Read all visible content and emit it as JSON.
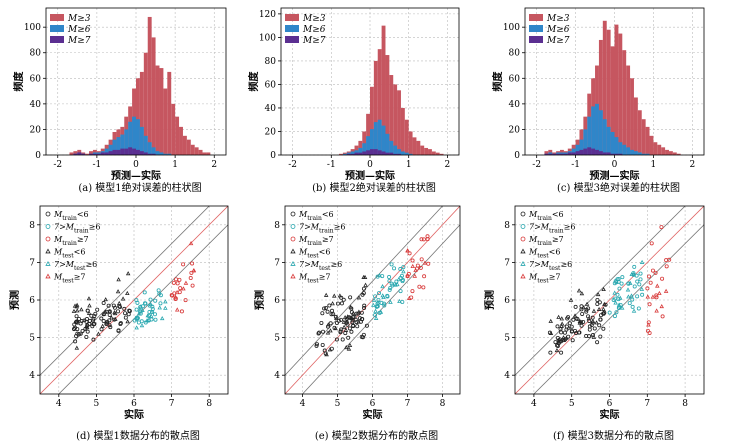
{
  "colors": {
    "m3": "#c65660",
    "m6": "#2f86c9",
    "m7": "#5b2f91",
    "train_lt6": "#222222",
    "train_6to7": "#2aa8b0",
    "train_ge7": "#d83a3a",
    "ref_line": "#e06666",
    "band_line": "#777777",
    "grid": "#bbbbbb"
  },
  "chart_data": [
    {
      "type": "bar",
      "panel": "a",
      "caption": "(a) 模型1绝对误差的柱状图",
      "xlabel": "预测—实际",
      "ylabel": "频度",
      "xlim": [
        -2.3,
        2.3
      ],
      "ylim": [
        0,
        115
      ],
      "xticks": [
        "-2",
        "-1",
        "0",
        "1",
        "2"
      ],
      "yticks": [
        "0",
        "20",
        "40",
        "60",
        "80",
        "100"
      ],
      "legend": [
        "M≥3",
        "M≥6",
        "M≥7"
      ],
      "bin_start": -1.7,
      "bin_width": 0.1,
      "series": [
        {
          "name": "M≥3",
          "values": [
            2,
            3,
            4,
            2,
            1,
            3,
            4,
            3,
            5,
            8,
            12,
            18,
            20,
            22,
            30,
            38,
            52,
            60,
            65,
            80,
            108,
            92,
            70,
            68,
            52,
            65,
            40,
            30,
            22,
            15,
            12,
            8,
            6,
            4,
            2,
            2
          ]
        },
        {
          "name": "M≥6",
          "values": [
            0,
            1,
            2,
            1,
            0,
            1,
            2,
            2,
            3,
            5,
            8,
            12,
            14,
            16,
            20,
            26,
            30,
            28,
            22,
            15,
            10,
            6,
            3,
            2,
            1,
            1,
            0,
            0,
            0,
            0,
            0,
            0,
            0,
            0,
            0,
            0
          ]
        },
        {
          "name": "M≥7",
          "values": [
            0,
            1,
            2,
            1,
            0,
            1,
            1,
            1,
            2,
            2,
            3,
            4,
            4,
            5,
            5,
            6,
            5,
            4,
            3,
            2,
            1,
            1,
            0,
            0,
            0,
            0,
            0,
            0,
            0,
            0,
            0,
            0,
            0,
            0,
            0,
            0
          ]
        }
      ]
    },
    {
      "type": "bar",
      "panel": "b",
      "caption": "(b) 模型2绝对误差的柱状图",
      "xlabel": "预测—实际",
      "ylabel": "频度",
      "xlim": [
        -2.3,
        2.3
      ],
      "ylim": [
        0,
        125
      ],
      "xticks": [
        "-2",
        "-1",
        "0",
        "1",
        "2"
      ],
      "yticks": [
        "0",
        "20",
        "40",
        "60",
        "80",
        "100",
        "120"
      ],
      "legend": [
        "M≥3",
        "M≥6",
        "M≥7"
      ],
      "bin_start": -0.8,
      "bin_width": 0.1,
      "series": [
        {
          "name": "M≥3",
          "values": [
            1,
            2,
            3,
            5,
            8,
            12,
            20,
            35,
            58,
            80,
            90,
            110,
            85,
            68,
            60,
            55,
            40,
            30,
            20,
            15,
            12,
            8,
            6,
            5,
            3,
            2,
            1
          ]
        },
        {
          "name": "M≥6",
          "values": [
            0,
            1,
            2,
            3,
            4,
            6,
            10,
            16,
            22,
            28,
            30,
            25,
            18,
            12,
            8,
            5,
            3,
            2,
            1,
            0,
            0,
            0,
            0,
            0,
            0,
            0,
            0
          ]
        },
        {
          "name": "M≥7",
          "values": [
            0,
            0,
            1,
            1,
            2,
            2,
            3,
            4,
            5,
            5,
            4,
            3,
            2,
            2,
            1,
            1,
            0,
            0,
            0,
            0,
            0,
            0,
            0,
            0,
            0,
            0,
            0
          ]
        }
      ]
    },
    {
      "type": "bar",
      "panel": "c",
      "caption": "(c) 模型3绝对误差的柱状图",
      "xlabel": "预测—实际",
      "ylabel": "频度",
      "xlim": [
        -2.3,
        2.3
      ],
      "ylim": [
        0,
        115
      ],
      "xticks": [
        "-2",
        "-1",
        "0",
        "1",
        "2"
      ],
      "yticks": [
        "0",
        "20",
        "40",
        "60",
        "80",
        "100"
      ],
      "legend": [
        "M≥3",
        "M≥6",
        "M≥7"
      ],
      "bin_start": -1.8,
      "bin_width": 0.1,
      "series": [
        {
          "name": "M≥3",
          "values": [
            3,
            4,
            2,
            3,
            4,
            3,
            5,
            8,
            12,
            20,
            30,
            48,
            60,
            70,
            90,
            105,
            98,
            85,
            102,
            95,
            82,
            70,
            60,
            45,
            35,
            28,
            22,
            15,
            10,
            8,
            6,
            4,
            3,
            2,
            1
          ]
        },
        {
          "name": "M≥6",
          "values": [
            1,
            2,
            1,
            2,
            2,
            2,
            3,
            5,
            8,
            12,
            20,
            30,
            38,
            40,
            35,
            28,
            22,
            18,
            14,
            10,
            8,
            6,
            4,
            3,
            2,
            1,
            1,
            0,
            0,
            0,
            0,
            0,
            0,
            0,
            0
          ]
        },
        {
          "name": "M≥7",
          "values": [
            1,
            1,
            1,
            1,
            1,
            1,
            2,
            2,
            3,
            4,
            5,
            6,
            5,
            4,
            3,
            2,
            2,
            1,
            1,
            1,
            0,
            0,
            0,
            0,
            0,
            0,
            0,
            0,
            0,
            0,
            0,
            0,
            0,
            0,
            0
          ]
        }
      ]
    },
    {
      "type": "scatter",
      "panel": "d",
      "caption": "(d) 模型1数据分布的散点图",
      "xlabel": "实际",
      "ylabel": "预测",
      "xlim": [
        3.5,
        8.5
      ],
      "ylim": [
        3.5,
        8.5
      ],
      "xticks": [
        "4",
        "5",
        "6",
        "7",
        "8"
      ],
      "yticks": [
        "4",
        "5",
        "6",
        "7",
        "8"
      ],
      "legend": [
        {
          "base": "M",
          "sub": "train",
          "rel": "<6"
        },
        {
          "base": "7>M",
          "sub": "train",
          "rel": "≥6"
        },
        {
          "base": "M",
          "sub": "train",
          "rel": "≥7"
        },
        {
          "base": "M",
          "sub": "test",
          "rel": "<6"
        },
        {
          "base": "7>M",
          "sub": "test",
          "rel": "≥6"
        },
        {
          "base": "M",
          "sub": "test",
          "rel": "≥7"
        }
      ],
      "clusters": [
        {
          "group": "train_lt6",
          "x": [
            4.4,
            5.9
          ],
          "y": [
            4.9,
            6.0
          ],
          "n": 70
        },
        {
          "group": "test_lt6",
          "x": [
            4.4,
            5.9
          ],
          "y": [
            4.7,
            6.7
          ],
          "n": 30
        },
        {
          "group": "train_6to7",
          "x": [
            6.0,
            6.8
          ],
          "y": [
            5.3,
            6.3
          ],
          "n": 35
        },
        {
          "group": "test_6to7",
          "x": [
            6.0,
            6.9
          ],
          "y": [
            5.2,
            6.2
          ],
          "n": 15
        },
        {
          "group": "train_ge7",
          "x": [
            7.0,
            7.6
          ],
          "y": [
            5.4,
            7.2
          ],
          "n": 18
        },
        {
          "group": "test_ge7",
          "x": [
            7.0,
            7.6
          ],
          "y": [
            5.5,
            7.5
          ],
          "n": 8
        }
      ]
    },
    {
      "type": "scatter",
      "panel": "e",
      "caption": "(e) 模型2数据分布的散点图",
      "xlabel": "实际",
      "ylabel": "预测",
      "xlim": [
        3.5,
        8.5
      ],
      "ylim": [
        3.5,
        8.5
      ],
      "xticks": [
        "4",
        "5",
        "6",
        "7",
        "8"
      ],
      "yticks": [
        "4",
        "5",
        "6",
        "7",
        "8"
      ],
      "legend": [
        {
          "base": "M",
          "sub": "train",
          "rel": "<6"
        },
        {
          "base": "7>M",
          "sub": "train",
          "rel": "≥6"
        },
        {
          "base": "M",
          "sub": "train",
          "rel": "≥7"
        },
        {
          "base": "M",
          "sub": "test",
          "rel": "<6"
        },
        {
          "base": "7>M",
          "sub": "test",
          "rel": "≥6"
        },
        {
          "base": "M",
          "sub": "test",
          "rel": "≥7"
        }
      ],
      "clusters": [
        {
          "group": "train_lt6",
          "x": [
            4.4,
            5.9
          ],
          "y": [
            4.5,
            6.3
          ],
          "n": 70
        },
        {
          "group": "test_lt6",
          "x": [
            4.4,
            5.9
          ],
          "y": [
            4.4,
            6.6
          ],
          "n": 30
        },
        {
          "group": "train_6to7",
          "x": [
            6.0,
            6.9
          ],
          "y": [
            5.6,
            7.0
          ],
          "n": 35
        },
        {
          "group": "test_6to7",
          "x": [
            6.0,
            6.9
          ],
          "y": [
            5.5,
            7.0
          ],
          "n": 15
        },
        {
          "group": "train_ge7",
          "x": [
            7.0,
            7.6
          ],
          "y": [
            6.0,
            8.0
          ],
          "n": 18
        },
        {
          "group": "test_ge7",
          "x": [
            7.0,
            7.6
          ],
          "y": [
            6.0,
            7.9
          ],
          "n": 8
        }
      ]
    },
    {
      "type": "scatter",
      "panel": "f",
      "caption": "(f) 模型3数据分布的散点图",
      "xlabel": "实际",
      "ylabel": "预测",
      "xlim": [
        3.5,
        8.5
      ],
      "ylim": [
        3.5,
        8.5
      ],
      "xticks": [
        "4",
        "5",
        "6",
        "7",
        "8"
      ],
      "yticks": [
        "4",
        "5",
        "6",
        "7",
        "8"
      ],
      "legend": [
        {
          "base": "M",
          "sub": "train",
          "rel": "<6"
        },
        {
          "base": "7>M",
          "sub": "train",
          "rel": "≥6"
        },
        {
          "base": "M",
          "sub": "train",
          "rel": "≥7"
        },
        {
          "base": "M",
          "sub": "test",
          "rel": "<6"
        },
        {
          "base": "7>M",
          "sub": "test",
          "rel": "≥6"
        },
        {
          "base": "M",
          "sub": "test",
          "rel": "≥7"
        }
      ],
      "clusters": [
        {
          "group": "train_lt6",
          "x": [
            4.4,
            5.9
          ],
          "y": [
            4.6,
            6.0
          ],
          "n": 70
        },
        {
          "group": "test_lt6",
          "x": [
            4.4,
            5.9
          ],
          "y": [
            4.5,
            6.3
          ],
          "n": 30
        },
        {
          "group": "train_6to7",
          "x": [
            6.0,
            6.9
          ],
          "y": [
            5.5,
            7.0
          ],
          "n": 35
        },
        {
          "group": "test_6to7",
          "x": [
            6.0,
            6.9
          ],
          "y": [
            5.5,
            7.0
          ],
          "n": 15
        },
        {
          "group": "train_ge7",
          "x": [
            7.0,
            7.6
          ],
          "y": [
            5.0,
            8.0
          ],
          "n": 18
        },
        {
          "group": "test_ge7",
          "x": [
            7.0,
            7.6
          ],
          "y": [
            5.0,
            7.5
          ],
          "n": 8
        }
      ]
    }
  ]
}
